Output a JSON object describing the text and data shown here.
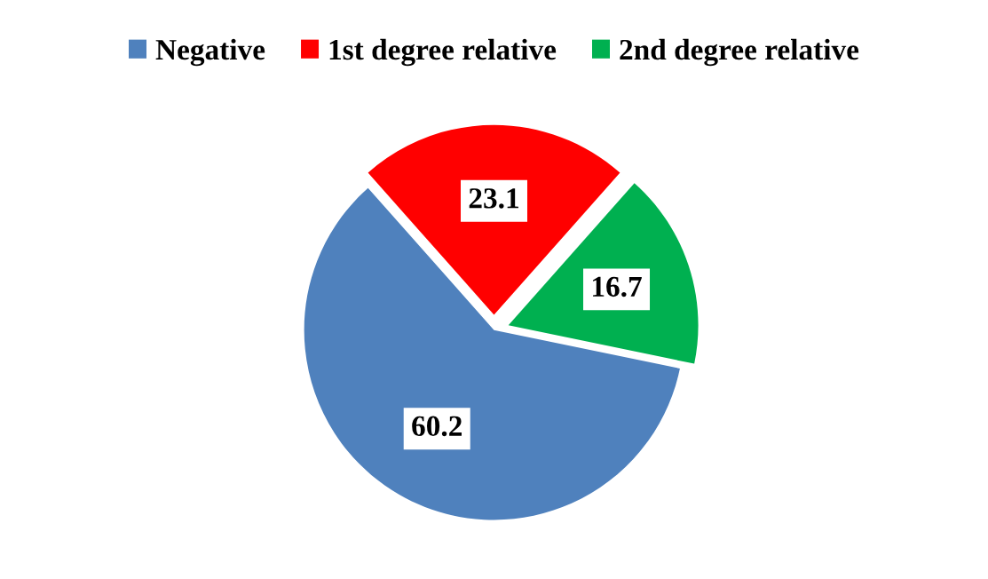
{
  "chart_data": {
    "type": "pie",
    "categories": [
      "Negative",
      "1st degree relative",
      "2nd degree relative"
    ],
    "values": [
      60.2,
      23.1,
      16.7
    ],
    "colors": [
      "#4f81bd",
      "#ff0000",
      "#00b050"
    ],
    "data_labels": true,
    "legend": "top"
  }
}
